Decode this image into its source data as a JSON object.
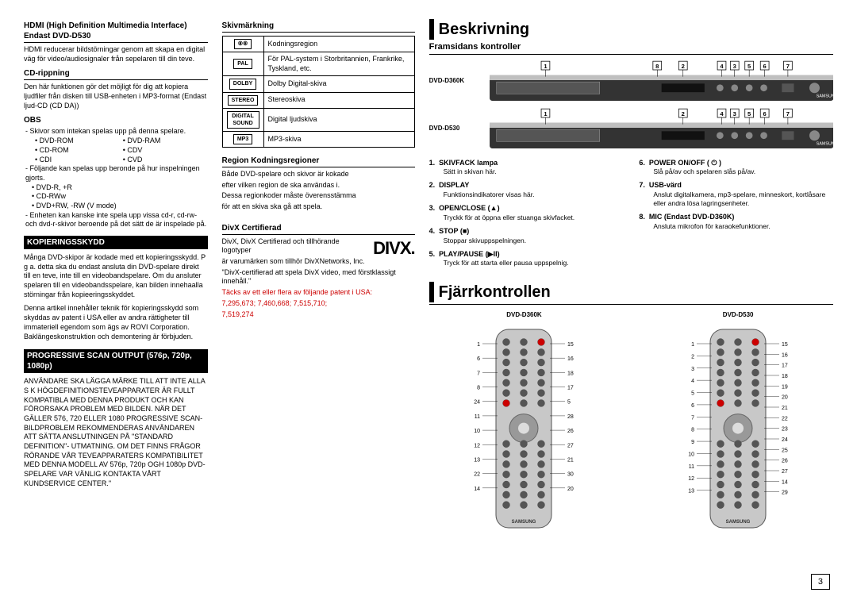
{
  "col1": {
    "hdmi_title": "HDMI (High Definition Multimedia Interface) Endast DVD-D530",
    "hdmi_body": "HDMI reducerar bildstörningar genom att skapa en digital väg för video/audiosignaler från sepelaren till din teve.",
    "cdrip_title": "CD-rippning",
    "cdrip_body": "Den här funktionen gör det möjligt för dig att kopiera ljudfiler från disken till USB-enheten i MP3-format (Endast ljud-CD (CD DA))",
    "obs_title": "OBS",
    "obs_l1": "Skivor som intekan spelas upp på denna spelare.",
    "obs_list_a": [
      "DVD-ROM",
      "CD-ROM",
      "CDI"
    ],
    "obs_list_b": [
      "DVD-RAM",
      "CDV",
      "CVD"
    ],
    "obs_l2": "Följande kan spelas upp beronde på hur inspelningen gjorts.",
    "obs_list2": [
      "DVD-R, +R",
      "CD-RWw",
      "DVD+RW, -RW (V mode)"
    ],
    "obs_l3": "Enheten kan kanske inte spela upp vissa cd-r, cd-rw-och dvd-r-skivor beroende på det sätt de är inspelade på.",
    "kopier_title": "KOPIERINGSSKYDD",
    "kopier_p1": "Många DVD-skipor är kodade med ett kopieringsskydd. P g a. detta ska du endast ansluta din DVD-spelare direkt till en teve, inte till en videobandspelare. Om du ansluter spelaren till en videobandsspelare, kan bilden innehaalla störningar från kopieeringsskyddet.",
    "kopier_p2": "Denna artikel innehåller teknik för kopieringsskydd som skyddas av patent i USA eller av andra rättigheter till immateriell egendom som ägs av ROVI Corporation. Baklängeskonstruktion och demontering är förbjuden.",
    "prog_title": "PROGRESSIVE SCAN OUTPUT (576p, 720p, 1080p)",
    "prog_body": "ANVÄNDARE SKA LÄGGA MÄRKE TILL ATT INTE ALLA S K HÖGDEFINITIONSTEVEAPPARATER ÄR FULLT KOMPATIBLA MED DENNA PRODUKT OCH KAN FÖRORSAKA PROBLEM MED BILDEN. NÄR DET GÄLLER 576, 720 ELLER 1080 PROGRESSIVE SCAN-BILDPROBLEM REKOMMENDERAS ANVÄNDAREN ATT SÄTTA ANSLUTNINGEN PÅ \"STANDARD DEFINITION\"- UTMATNING. OM DET FINNS FRÅGOR RÖRANDE VÅR TEVEAPPARATERS KOMPATIBILITET MED DENNA MODELL AV 576p, 720p OGH 1080p DVD-SPELARE VAR VÄNLIG KONTAKTA VÅRT KUNDSERVICE CENTER.\""
  },
  "col2": {
    "skiv_title": "Skivmärkning",
    "table": [
      {
        "icon": "⑧⑧",
        "text": "Kodningsregion"
      },
      {
        "icon": "PAL",
        "text": "För PAL-system i Storbritannien, Frankrike, Tyskland, etc."
      },
      {
        "icon": "DOLBY",
        "text": "Dolby Digital-skiva"
      },
      {
        "icon": "STEREO",
        "text": "Stereoskiva"
      },
      {
        "icon": "DIGITAL SOUND",
        "text": "Digital ljudskiva"
      },
      {
        "icon": "MP3",
        "text": "MP3-skiva"
      }
    ],
    "region_title": "Region Kodningsregioner",
    "region_p1": "Både DVD-spelare och skivor är kokade",
    "region_p2": "efter vilken region de ska användas i.",
    "region_p3": "Dessa regionkoder måste överensstämma",
    "region_p4": "för att en skiva ska gå att spela.",
    "divx_title": "DivX Certifierad",
    "divx_logo": "DIVX.",
    "divx_p1": "DivX, DivX Certifierad och tillhörande logotyper",
    "divx_p2": "är varumärken som tillhör DivXNetworks, Inc.",
    "divx_p3": "\"DivX-certifierad att spela DivX video, med förstklassigt innehåll.\"",
    "divx_red1": "Täcks av ett eller flera av följande patent i USA:",
    "divx_red2": "7,295,673; 7,460,668; 7,515,710;",
    "divx_red3": "7,519,274"
  },
  "right": {
    "besk_title": "Beskrivning",
    "front_title": "Framsidans kontroller",
    "panel1_label": "DVD-D360K",
    "panel2_label": "DVD-D530",
    "panel1_nums": [
      "1",
      "8",
      "2",
      "4",
      "3",
      "5",
      "6",
      "7"
    ],
    "panel2_nums": [
      "1",
      "2",
      "4",
      "3",
      "5",
      "6",
      "7"
    ],
    "controls_left": [
      {
        "n": "1.",
        "name": "SKIVFACK lampa",
        "desc": "Sätt in skivan här."
      },
      {
        "n": "2.",
        "name": "DISPLAY",
        "desc": "Funktionsindikatorer visas här."
      },
      {
        "n": "3.",
        "name": "OPEN/CLOSE (▲)",
        "desc": "Tryckk för at öppna eller stuanga skivfacket."
      },
      {
        "n": "4.",
        "name": "STOP (■)",
        "desc": "Stoppar skivuppspelningen."
      },
      {
        "n": "5.",
        "name": "PLAY/PAUSE (▶II)",
        "desc": "Tryck för att starta eller pausa uppspelnig."
      }
    ],
    "controls_right": [
      {
        "n": "6.",
        "name": "POWER ON/OFF ( ⏻ )",
        "desc": "Slå på/av och spelaren slås på/av."
      },
      {
        "n": "7.",
        "name": "USB-värd",
        "desc": "Anslut digitalkamera, mp3-spelare, minneskort, kortlåsare eller andra lösa lagringsenheter."
      },
      {
        "n": "8.",
        "name": "MIC (Endast DVD-D360K)",
        "desc": "Ansluta mikrofon för karaokefunktioner."
      }
    ],
    "fjarr_title": "Fjärrkontrollen",
    "remote1_label": "DVD-D360K",
    "remote2_label": "DVD-D530",
    "remote1_left": [
      1,
      6,
      7,
      8,
      24,
      11,
      10,
      12,
      13,
      22,
      14
    ],
    "remote1_right": [
      15,
      16,
      18,
      17,
      5,
      28,
      26,
      27,
      21,
      30,
      20
    ],
    "remote2_left": [
      1,
      2,
      3,
      4,
      5,
      6,
      7,
      8,
      9,
      10,
      11,
      12,
      13
    ],
    "remote2_right": [
      15,
      16,
      17,
      18,
      19,
      20,
      21,
      22,
      23,
      24,
      25,
      26,
      27,
      14,
      29
    ]
  },
  "page_number": "3",
  "colors": {
    "red": "#cc0000",
    "panel_fill": "#bfbfbf",
    "panel_dark": "#333333",
    "remote_fill": "#c8c8c8"
  }
}
